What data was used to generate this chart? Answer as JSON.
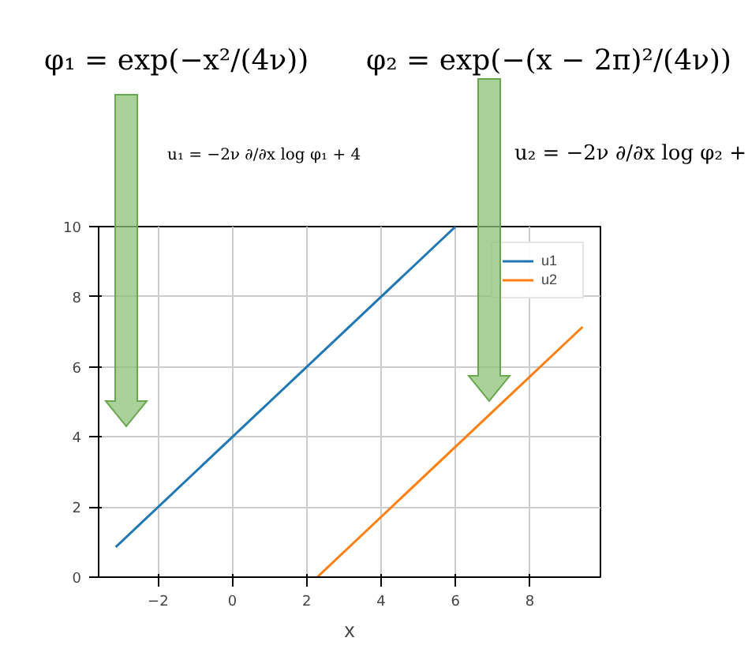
{
  "chart_data": {
    "type": "line",
    "xlabel": "x",
    "xlim": [
      -3.6,
      9.9
    ],
    "ylim": [
      0,
      10
    ],
    "xticks": [
      -2,
      0,
      2,
      4,
      6,
      8
    ],
    "yticks": [
      0,
      2,
      4,
      6,
      8,
      10
    ],
    "grid": true,
    "legend": "top right",
    "marker": "none",
    "line_style": "solid",
    "series": [
      {
        "name": "u1",
        "color": "#1f77b4",
        "x": [
          -3.14,
          6.0
        ],
        "values": [
          0.86,
          10.0
        ]
      },
      {
        "name": "u2",
        "color": "#ff7f0e",
        "x": [
          2.28,
          9.42
        ],
        "values": [
          0.0,
          7.14
        ]
      }
    ],
    "annotations": [
      "φ₁ = exp(−x²/(4ν))",
      "φ₂ = exp(−(x − 2π)²/(4ν))",
      "u₁ = −2ν ∂/∂x log φ₁ + 4",
      "u₂ = −2ν ∂/∂x log φ₂ +"
    ]
  }
}
